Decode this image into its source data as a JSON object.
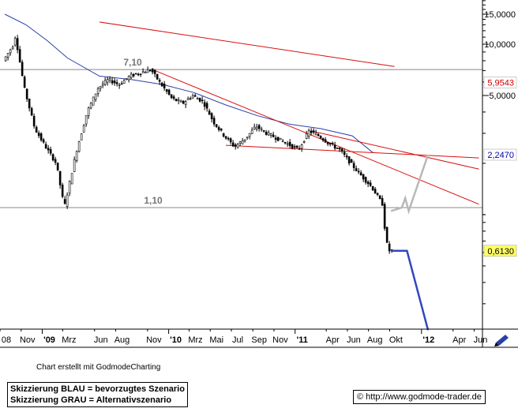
{
  "chart_data": {
    "type": "line",
    "subtype": "candlestick",
    "scale": "log",
    "ylim": [
      0.17,
      19
    ],
    "y_ticks": [
      "15,0000",
      "10,0000",
      "5,0000"
    ],
    "x_ticks": [
      "08",
      "Nov",
      "'09",
      "Mrz",
      "Jun",
      "Aug",
      "Nov",
      "'10",
      "Mrz",
      "Mai",
      "Jul",
      "Sep",
      "Nov",
      "'11",
      "Apr",
      "Jun",
      "Aug",
      "Okt",
      "'12",
      "Apr",
      "Jun"
    ],
    "x_range": [
      "2008-09",
      "2012-06"
    ],
    "price_path": [
      [
        "2008-09",
        8.0
      ],
      [
        "2008-10",
        10.0
      ],
      [
        "2008-10-20",
        11.2
      ],
      [
        "2008-11",
        5.5
      ],
      [
        "2008-12",
        3.2
      ],
      [
        "2009-01",
        2.5
      ],
      [
        "2009-02",
        2.0
      ],
      [
        "2009-03-10",
        1.1
      ],
      [
        "2009-04",
        2.4
      ],
      [
        "2009-05",
        4.0
      ],
      [
        "2009-06",
        5.5
      ],
      [
        "2009-07",
        6.2
      ],
      [
        "2009-08",
        5.8
      ],
      [
        "2009-09",
        6.5
      ],
      [
        "2009-10",
        6.8
      ],
      [
        "2009-11",
        7.1
      ],
      [
        "2009-12",
        5.8
      ],
      [
        "2010-01",
        4.8
      ],
      [
        "2010-02",
        4.5
      ],
      [
        "2010-03",
        5.0
      ],
      [
        "2010-04",
        4.6
      ],
      [
        "2010-05",
        3.5
      ],
      [
        "2010-06",
        2.9
      ],
      [
        "2010-07",
        2.5
      ],
      [
        "2010-08",
        2.8
      ],
      [
        "2010-09",
        3.3
      ],
      [
        "2010-10",
        3.0
      ],
      [
        "2010-11",
        2.8
      ],
      [
        "2010-12",
        2.6
      ],
      [
        "2011-01",
        2.4
      ],
      [
        "2011-02",
        3.1
      ],
      [
        "2011-03",
        2.9
      ],
      [
        "2011-04",
        2.6
      ],
      [
        "2011-05",
        2.4
      ],
      [
        "2011-06",
        2.0
      ],
      [
        "2011-07",
        1.7
      ],
      [
        "2011-08",
        1.45
      ],
      [
        "2011-09",
        1.15
      ],
      [
        "2011-09-25",
        0.7
      ],
      [
        "2011-10-05",
        0.613
      ]
    ],
    "moving_average": [
      [
        "2008-09",
        15.0
      ],
      [
        "2008-11",
        13.0
      ],
      [
        "2009-01",
        10.5
      ],
      [
        "2009-03",
        8.3
      ],
      [
        "2009-06",
        6.5
      ],
      [
        "2009-09",
        6.2
      ],
      [
        "2009-12",
        5.8
      ],
      [
        "2010-03",
        5.2
      ],
      [
        "2010-06",
        4.4
      ],
      [
        "2010-09",
        3.8
      ],
      [
        "2010-12",
        3.4
      ],
      [
        "2011-03",
        3.2
      ],
      [
        "2011-06",
        2.9
      ],
      [
        "2011-08",
        2.3
      ]
    ],
    "horizontal_lines": [
      {
        "label": "7,10",
        "value": 7.1
      },
      {
        "label": "1,10",
        "value": 1.1
      }
    ],
    "trend_lines": [
      {
        "from": [
          "2009-06",
          13.5
        ],
        "to": [
          "2011-10",
          7.4
        ]
      },
      {
        "from": [
          "2009-11",
          7.1
        ],
        "to": [
          "2012-06",
          1.15
        ]
      },
      {
        "from": [
          "2010-06",
          2.55
        ],
        "to": [
          "2012-06",
          2.15
        ]
      },
      {
        "from": [
          "2011-02",
          3.1
        ],
        "to": [
          "2012-06",
          1.85
        ]
      }
    ],
    "scenario_blue": [
      [
        "2011-10-05",
        0.613
      ],
      [
        "2011-11-20",
        0.613
      ],
      [
        "2012-01-20",
        0.21
      ]
    ],
    "scenario_gray": [
      [
        "2011-10-05",
        1.05
      ],
      [
        "2011-11-05",
        1.1
      ],
      [
        "2011-11-15",
        1.25
      ],
      [
        "2011-11-25",
        1.05
      ],
      [
        "2012-01-20",
        2.247
      ]
    ],
    "price_labels": [
      {
        "text": "5,9543",
        "value": 5.9543,
        "color": "#d00000"
      },
      {
        "text": "2,2470",
        "value": 2.247,
        "color": "#0000b0"
      },
      {
        "text": "0,6130",
        "value": 0.613,
        "color": "#000000",
        "background": "#ffff66"
      }
    ],
    "colors": {
      "price": "#000000",
      "moving_average": "#2a3fa8",
      "trend": "#d81010",
      "level": "#888888",
      "scenario_blue": "#3047c0",
      "scenario_gray": "#b8b8b8"
    }
  },
  "footer": {
    "credit": "Chart erstellt mit GodmodeCharting",
    "legend_blue": "Skizzierung BLAU = bevorzugtes Szenario",
    "legend_gray": "Skizzierung GRAU = Alternativszenario",
    "url": "http://www.godmode-trader.de",
    "url_icon": "copyright-icon"
  }
}
